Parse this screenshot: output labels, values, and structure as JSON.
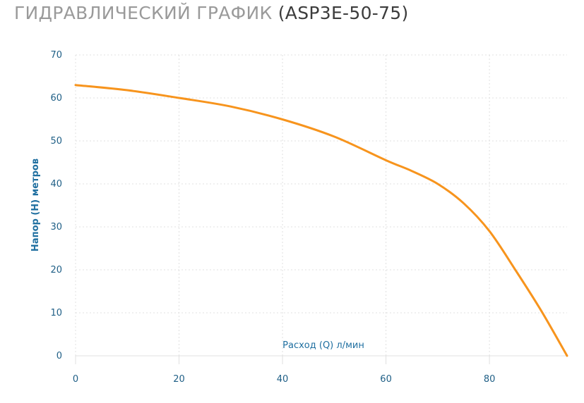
{
  "title": {
    "main": "ГИДРАВЛИЧЕСКИЙ ГРАФИК",
    "model": "(ASP3E-50-75)"
  },
  "colors": {
    "curve": "#f7941d",
    "grid": "#e0e0e0",
    "tick": "#1f5f86",
    "label": "#1f6fa0"
  },
  "chart_data": {
    "type": "line",
    "xlabel": "Расход (Q) л/мин",
    "ylabel": "Напор (H) метров",
    "xlim": [
      0,
      95
    ],
    "ylim": [
      0,
      70
    ],
    "x_ticks": [
      0,
      20,
      40,
      60,
      80
    ],
    "y_ticks": [
      0,
      10,
      20,
      30,
      40,
      50,
      60,
      70
    ],
    "grid": true,
    "series": [
      {
        "x": [
          0,
          10,
          20,
          30,
          40,
          50,
          60,
          65,
          70,
          75,
          80,
          85,
          90,
          95
        ],
        "y": [
          63,
          61.8,
          60,
          58,
          55,
          51,
          45.5,
          43,
          40,
          35.5,
          29,
          20,
          10.5,
          0
        ]
      }
    ]
  }
}
